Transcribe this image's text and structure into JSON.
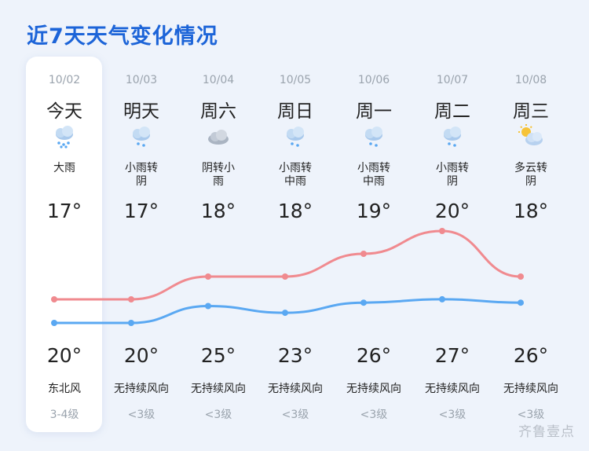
{
  "title": "近7天天气变化情况",
  "watermark": "齐鲁壹点",
  "colors": {
    "high_line": "#f08a8f",
    "low_line": "#5aa8f2",
    "accent": "#1c64d8"
  },
  "days": [
    {
      "date": "10/02",
      "day": "今天",
      "icon": "heavy-rain-icon",
      "desc": "大雨",
      "high": "17°",
      "low": "20°",
      "wind": "东北风",
      "level": "3-4级"
    },
    {
      "date": "10/03",
      "day": "明天",
      "icon": "rain-icon",
      "desc": "小雨转\n阴",
      "high": "17°",
      "low": "20°",
      "wind": "无持续风向",
      "level": "<3级"
    },
    {
      "date": "10/04",
      "day": "周六",
      "icon": "cloudy-icon",
      "desc": "阴转小\n雨",
      "high": "18°",
      "low": "25°",
      "wind": "无持续风向",
      "level": "<3级"
    },
    {
      "date": "10/05",
      "day": "周日",
      "icon": "rain-icon",
      "desc": "小雨转\n中雨",
      "high": "18°",
      "low": "23°",
      "wind": "无持续风向",
      "level": "<3级"
    },
    {
      "date": "10/06",
      "day": "周一",
      "icon": "rain-icon",
      "desc": "小雨转\n中雨",
      "high": "19°",
      "low": "26°",
      "wind": "无持续风向",
      "level": "<3级"
    },
    {
      "date": "10/07",
      "day": "周二",
      "icon": "rain-icon",
      "desc": "小雨转\n阴",
      "high": "20°",
      "low": "27°",
      "wind": "无持续风向",
      "level": "<3级"
    },
    {
      "date": "10/08",
      "day": "周三",
      "icon": "partly-cloudy-icon",
      "desc": "多云转\n阴",
      "high": "18°",
      "low": "26°",
      "wind": "无持续风向",
      "level": "<3级"
    }
  ],
  "chart_data": {
    "type": "line",
    "categories": [
      "10/02",
      "10/03",
      "10/04",
      "10/05",
      "10/06",
      "10/07",
      "10/08"
    ],
    "series": [
      {
        "values": [
          17,
          17,
          18,
          18,
          19,
          20,
          18
        ]
      },
      {
        "values": [
          20,
          20,
          25,
          23,
          26,
          27,
          26
        ]
      }
    ]
  }
}
